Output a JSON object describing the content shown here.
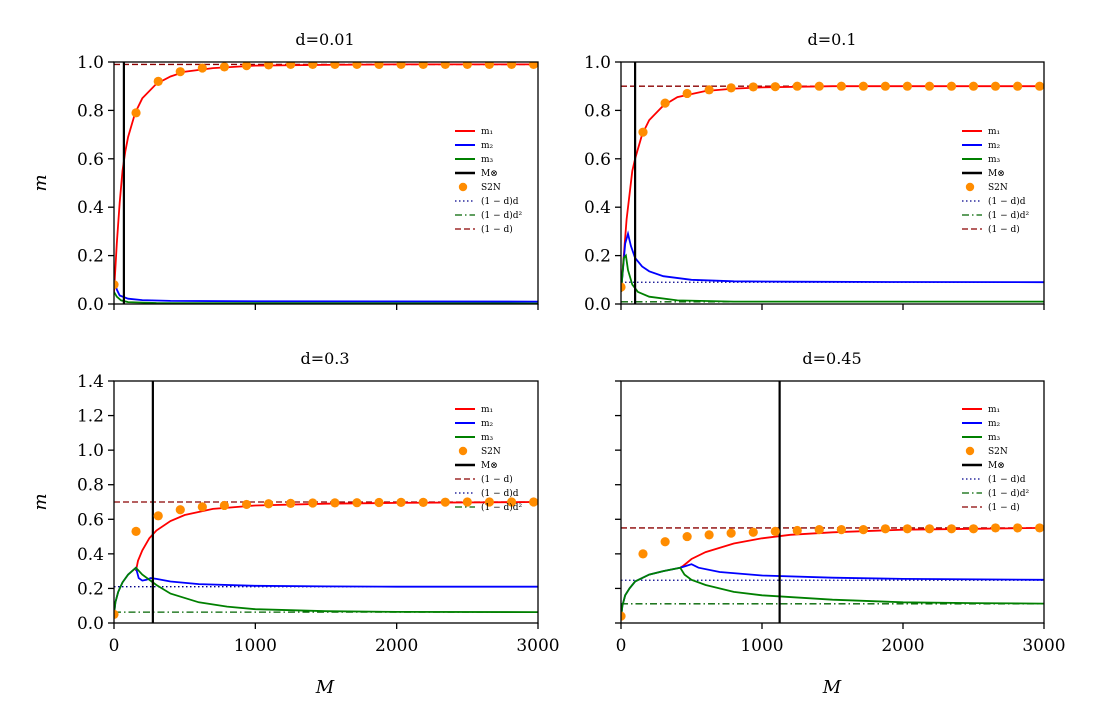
{
  "chart_data": [
    {
      "type": "line",
      "title": "d=0.01",
      "d": 0.01,
      "xlabel": "",
      "ylabel": "m",
      "xlim": [
        0,
        3000
      ],
      "ylim": [
        0,
        1.0
      ],
      "yticks": [
        "0.0",
        "0.2",
        "0.4",
        "0.6",
        "0.8",
        "1.0"
      ],
      "ytick_values": [
        0,
        0.2,
        0.4,
        0.6,
        0.8,
        1.0
      ],
      "xticks": [],
      "xtick_values": [
        0,
        1000,
        2000,
        3000
      ],
      "M_otimes": 70,
      "legend": [
        "m₁",
        "m₂",
        "m₃",
        "M⊗",
        "S2N",
        "(1 − d)d",
        "(1 − d)d²",
        "(1 − d)"
      ],
      "series": [
        {
          "name": "m₁",
          "color": "#ff0000",
          "x": [
            0,
            20,
            40,
            60,
            80,
            100,
            150,
            200,
            300,
            400,
            500,
            700,
            1000,
            1500,
            2000,
            3000
          ],
          "y": [
            0.05,
            0.25,
            0.42,
            0.55,
            0.63,
            0.69,
            0.79,
            0.85,
            0.91,
            0.94,
            0.96,
            0.975,
            0.985,
            0.988,
            0.99,
            0.99
          ]
        },
        {
          "name": "m₂",
          "color": "#0000ff",
          "x": [
            0,
            20,
            40,
            100,
            200,
            400,
            1000,
            3000
          ],
          "y": [
            0.1,
            0.06,
            0.035,
            0.022,
            0.016,
            0.013,
            0.011,
            0.01
          ]
        },
        {
          "name": "m₃",
          "color": "#008000",
          "x": [
            0,
            20,
            50,
            100,
            300,
            3000
          ],
          "y": [
            0.05,
            0.03,
            0.015,
            0.008,
            0.004,
            0.002
          ]
        }
      ],
      "hlines": [
        {
          "name": "(1 − d)",
          "value": 0.99,
          "style": "dashed",
          "color": "#8b0000"
        }
      ],
      "s2n": {
        "x": [
          0,
          156,
          313,
          469,
          625,
          781,
          938,
          1094,
          1250,
          1406,
          1563,
          1719,
          1875,
          2031,
          2188,
          2344,
          2500,
          2656,
          2813,
          2969
        ],
        "y": [
          0.08,
          0.79,
          0.92,
          0.96,
          0.975,
          0.98,
          0.985,
          0.988,
          0.99,
          0.99,
          0.99,
          0.99,
          0.99,
          0.99,
          0.99,
          0.99,
          0.99,
          0.99,
          0.99,
          0.99
        ]
      }
    },
    {
      "type": "line",
      "title": "d=0.1",
      "d": 0.1,
      "xlabel": "",
      "ylabel": "",
      "xlim": [
        0,
        3000
      ],
      "ylim": [
        0,
        1.0
      ],
      "yticks": [
        "0.0",
        "0.2",
        "0.4",
        "0.6",
        "0.8",
        "1.0"
      ],
      "ytick_values": [
        0,
        0.2,
        0.4,
        0.6,
        0.8,
        1.0
      ],
      "xticks": [],
      "xtick_values": [
        0,
        1000,
        2000,
        3000
      ],
      "M_otimes": 100,
      "legend": [
        "m₁",
        "m₂",
        "m₃",
        "M⊗",
        "S2N",
        "(1 − d)d",
        "(1 − d)d²",
        "(1 − d)"
      ],
      "series": [
        {
          "name": "m₁",
          "color": "#ff0000",
          "x": [
            0,
            40,
            80,
            100,
            150,
            200,
            300,
            400,
            600,
            800,
            1000,
            1500,
            2000,
            3000
          ],
          "y": [
            0.05,
            0.35,
            0.55,
            0.6,
            0.7,
            0.76,
            0.82,
            0.855,
            0.88,
            0.89,
            0.895,
            0.9,
            0.9,
            0.9
          ]
        },
        {
          "name": "m₂",
          "color": "#0000ff",
          "x": [
            0,
            30,
            50,
            70,
            100,
            150,
            200,
            300,
            500,
            800,
            1200,
            2000,
            3000
          ],
          "y": [
            0.05,
            0.25,
            0.29,
            0.24,
            0.19,
            0.155,
            0.135,
            0.115,
            0.1,
            0.094,
            0.092,
            0.091,
            0.09
          ]
        },
        {
          "name": "m₃",
          "color": "#008000",
          "x": [
            0,
            20,
            35,
            50,
            80,
            120,
            200,
            400,
            800,
            3000
          ],
          "y": [
            0.05,
            0.19,
            0.2,
            0.14,
            0.08,
            0.05,
            0.03,
            0.015,
            0.01,
            0.01
          ]
        }
      ],
      "hlines": [
        {
          "name": "(1 − d)",
          "value": 0.9,
          "style": "dashed",
          "color": "#8b0000"
        },
        {
          "name": "(1 − d)d",
          "value": 0.09,
          "style": "dotted",
          "color": "#00008b"
        },
        {
          "name": "(1 − d)d²",
          "value": 0.009,
          "style": "dashdot",
          "color": "#006400"
        }
      ],
      "s2n": {
        "x": [
          0,
          156,
          313,
          469,
          625,
          781,
          938,
          1094,
          1250,
          1406,
          1563,
          1719,
          1875,
          2031,
          2188,
          2344,
          2500,
          2656,
          2813,
          2969
        ],
        "y": [
          0.07,
          0.71,
          0.83,
          0.87,
          0.885,
          0.893,
          0.897,
          0.898,
          0.9,
          0.9,
          0.9,
          0.9,
          0.9,
          0.9,
          0.9,
          0.9,
          0.9,
          0.9,
          0.9,
          0.9
        ]
      }
    },
    {
      "type": "line",
      "title": "d=0.3",
      "d": 0.3,
      "xlabel": "M",
      "ylabel": "m",
      "xlim": [
        0,
        3000
      ],
      "ylim": [
        0,
        1.4
      ],
      "yticks": [
        "0.0",
        "0.2",
        "0.4",
        "0.6",
        "0.8",
        "1.0",
        "1.2",
        "1.4"
      ],
      "ytick_values": [
        0,
        0.2,
        0.4,
        0.6,
        0.8,
        1.0,
        1.2,
        1.4
      ],
      "xticks": [
        "0",
        "1000",
        "2000",
        "3000"
      ],
      "xtick_values": [
        0,
        1000,
        2000,
        3000
      ],
      "M_otimes": 275,
      "legend": [
        "m₁",
        "m₂",
        "m₃",
        "S2N",
        "M⊗",
        "(1 − d)",
        "(1 − d)d",
        "(1 − d)d²"
      ],
      "series": [
        {
          "name": "m₁",
          "color": "#ff0000",
          "x": [
            155,
            170,
            200,
            250,
            300,
            400,
            500,
            700,
            1000,
            1500,
            2000,
            3000
          ],
          "y": [
            0.3,
            0.36,
            0.42,
            0.49,
            0.535,
            0.59,
            0.625,
            0.66,
            0.68,
            0.69,
            0.695,
            0.7
          ]
        },
        {
          "name": "m₂",
          "color": "#0000ff",
          "x": [
            0,
            10,
            30,
            60,
            100,
            155,
            175,
            200,
            230,
            260,
            300,
            400,
            600,
            1000,
            1500,
            2000,
            3000
          ],
          "y": [
            0.05,
            0.12,
            0.18,
            0.235,
            0.28,
            0.32,
            0.26,
            0.245,
            0.25,
            0.26,
            0.255,
            0.24,
            0.225,
            0.215,
            0.212,
            0.21,
            0.21
          ]
        },
        {
          "name": "m₃",
          "color": "#008000",
          "x": [
            0,
            10,
            30,
            60,
            100,
            155,
            200,
            300,
            400,
            600,
            800,
            1000,
            1500,
            2000,
            3000
          ],
          "y": [
            0.05,
            0.12,
            0.18,
            0.235,
            0.28,
            0.32,
            0.28,
            0.22,
            0.17,
            0.12,
            0.095,
            0.08,
            0.068,
            0.064,
            0.063
          ]
        }
      ],
      "hlines": [
        {
          "name": "(1 − d)",
          "value": 0.7,
          "style": "dashed",
          "color": "#8b0000"
        },
        {
          "name": "(1 − d)d",
          "value": 0.21,
          "style": "dotted",
          "color": "#00008b"
        },
        {
          "name": "(1 − d)d²",
          "value": 0.063,
          "style": "dashdot",
          "color": "#006400"
        }
      ],
      "s2n": {
        "x": [
          0,
          156,
          313,
          469,
          625,
          781,
          938,
          1094,
          1250,
          1406,
          1563,
          1719,
          1875,
          2031,
          2188,
          2344,
          2500,
          2656,
          2813,
          2969
        ],
        "y": [
          0.05,
          0.53,
          0.62,
          0.655,
          0.672,
          0.68,
          0.686,
          0.69,
          0.692,
          0.694,
          0.695,
          0.696,
          0.697,
          0.698,
          0.698,
          0.699,
          0.7,
          0.7,
          0.7,
          0.7
        ]
      }
    },
    {
      "type": "line",
      "title": "d=0.45",
      "d": 0.45,
      "xlabel": "M",
      "ylabel": "",
      "xlim": [
        0,
        3000
      ],
      "ylim": [
        0,
        1.4
      ],
      "yticks": [],
      "ytick_values": [
        0,
        0.2,
        0.4,
        0.6,
        0.8,
        1.0,
        1.2,
        1.4
      ],
      "xticks": [
        "0",
        "1000",
        "2000",
        "3000"
      ],
      "xtick_values": [
        0,
        1000,
        2000,
        3000
      ],
      "M_otimes": 1125,
      "legend": [
        "m₁",
        "m₂",
        "m₃",
        "S2N",
        "M⊗",
        "(1 − d)d",
        "(1 − d)d²",
        "(1 − d)"
      ],
      "series": [
        {
          "name": "m₁",
          "color": "#ff0000",
          "x": [
            420,
            440,
            470,
            500,
            600,
            800,
            1000,
            1200,
            1500,
            2000,
            2500,
            3000
          ],
          "y": [
            0.32,
            0.33,
            0.35,
            0.37,
            0.41,
            0.46,
            0.49,
            0.51,
            0.525,
            0.54,
            0.545,
            0.55
          ]
        },
        {
          "name": "m₂",
          "color": "#0000ff",
          "x": [
            0,
            10,
            30,
            60,
            100,
            200,
            300,
            420,
            460,
            500,
            550,
            700,
            1000,
            1500,
            2000,
            3000
          ],
          "y": [
            0.03,
            0.1,
            0.16,
            0.2,
            0.24,
            0.28,
            0.3,
            0.32,
            0.33,
            0.34,
            0.32,
            0.295,
            0.275,
            0.262,
            0.255,
            0.25
          ]
        },
        {
          "name": "m₃",
          "color": "#008000",
          "x": [
            0,
            10,
            30,
            60,
            100,
            200,
            300,
            420,
            450,
            500,
            600,
            800,
            1000,
            1500,
            2000,
            2500,
            3000
          ],
          "y": [
            0.03,
            0.1,
            0.16,
            0.2,
            0.24,
            0.28,
            0.3,
            0.32,
            0.28,
            0.25,
            0.22,
            0.18,
            0.16,
            0.135,
            0.12,
            0.115,
            0.112
          ]
        }
      ],
      "hlines": [
        {
          "name": "(1 − d)",
          "value": 0.55,
          "style": "dashed",
          "color": "#8b0000"
        },
        {
          "name": "(1 − d)d",
          "value": 0.2475,
          "style": "dotted",
          "color": "#00008b"
        },
        {
          "name": "(1 − d)d²",
          "value": 0.111,
          "style": "dashdot",
          "color": "#006400"
        }
      ],
      "s2n": {
        "x": [
          0,
          156,
          313,
          469,
          625,
          781,
          938,
          1094,
          1250,
          1406,
          1563,
          1719,
          1875,
          2031,
          2188,
          2344,
          2500,
          2656,
          2813,
          2969
        ],
        "y": [
          0.04,
          0.4,
          0.47,
          0.5,
          0.51,
          0.52,
          0.525,
          0.53,
          0.535,
          0.54,
          0.54,
          0.54,
          0.545,
          0.545,
          0.545,
          0.545,
          0.545,
          0.55,
          0.55,
          0.55
        ]
      }
    }
  ]
}
